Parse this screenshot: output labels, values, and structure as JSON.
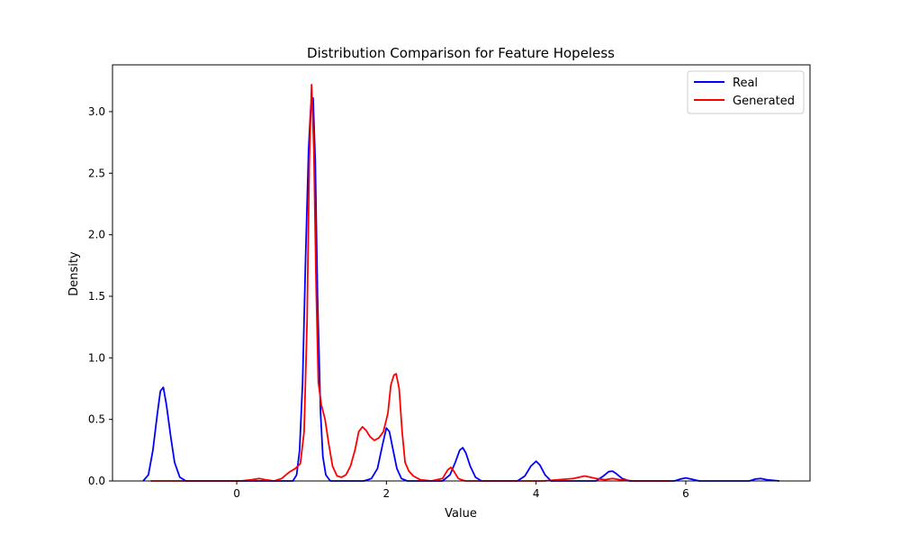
{
  "chart_data": {
    "type": "line",
    "title": "Distribution Comparison for Feature Hopeless",
    "xlabel": "Value",
    "ylabel": "Density",
    "xlim": [
      -1.66,
      7.66
    ],
    "ylim": [
      0,
      3.38
    ],
    "x_ticks": [
      0,
      2,
      4,
      6
    ],
    "y_ticks": [
      0.0,
      0.5,
      1.0,
      1.5,
      2.0,
      2.5,
      3.0
    ],
    "x_tick_labels": [
      "0",
      "2",
      "4",
      "6"
    ],
    "y_tick_labels": [
      "0.0",
      "0.5",
      "1.0",
      "1.5",
      "2.0",
      "2.5",
      "3.0"
    ],
    "grid": false,
    "legend_position": "top-right",
    "series": [
      {
        "name": "Real",
        "color": "#0000ff",
        "points": [
          [
            -1.25,
            0.0
          ],
          [
            -1.18,
            0.05
          ],
          [
            -1.12,
            0.25
          ],
          [
            -1.06,
            0.55
          ],
          [
            -1.02,
            0.73
          ],
          [
            -0.98,
            0.76
          ],
          [
            -0.94,
            0.62
          ],
          [
            -0.88,
            0.35
          ],
          [
            -0.83,
            0.15
          ],
          [
            -0.76,
            0.03
          ],
          [
            -0.68,
            0.0
          ],
          [
            0.5,
            0.0
          ],
          [
            0.75,
            0.0
          ],
          [
            0.8,
            0.05
          ],
          [
            0.84,
            0.25
          ],
          [
            0.88,
            0.8
          ],
          [
            0.92,
            1.8
          ],
          [
            0.96,
            2.7
          ],
          [
            0.99,
            3.05
          ],
          [
            1.02,
            3.11
          ],
          [
            1.05,
            2.6
          ],
          [
            1.08,
            1.5
          ],
          [
            1.12,
            0.55
          ],
          [
            1.15,
            0.2
          ],
          [
            1.19,
            0.05
          ],
          [
            1.25,
            0.0
          ],
          [
            1.7,
            0.0
          ],
          [
            1.8,
            0.02
          ],
          [
            1.88,
            0.1
          ],
          [
            1.95,
            0.3
          ],
          [
            2.0,
            0.43
          ],
          [
            2.04,
            0.4
          ],
          [
            2.09,
            0.25
          ],
          [
            2.14,
            0.1
          ],
          [
            2.2,
            0.02
          ],
          [
            2.28,
            0.0
          ],
          [
            2.75,
            0.0
          ],
          [
            2.85,
            0.05
          ],
          [
            2.92,
            0.15
          ],
          [
            2.98,
            0.25
          ],
          [
            3.02,
            0.27
          ],
          [
            3.06,
            0.23
          ],
          [
            3.12,
            0.12
          ],
          [
            3.19,
            0.03
          ],
          [
            3.27,
            0.0
          ],
          [
            3.75,
            0.0
          ],
          [
            3.85,
            0.04
          ],
          [
            3.93,
            0.12
          ],
          [
            4.0,
            0.16
          ],
          [
            4.05,
            0.13
          ],
          [
            4.12,
            0.05
          ],
          [
            4.2,
            0.0
          ],
          [
            4.8,
            0.0
          ],
          [
            4.9,
            0.04
          ],
          [
            4.97,
            0.075
          ],
          [
            5.02,
            0.08
          ],
          [
            5.07,
            0.06
          ],
          [
            5.15,
            0.02
          ],
          [
            5.25,
            0.0
          ],
          [
            5.85,
            0.0
          ],
          [
            5.93,
            0.015
          ],
          [
            6.0,
            0.025
          ],
          [
            6.07,
            0.015
          ],
          [
            6.18,
            0.0
          ],
          [
            6.85,
            0.0
          ],
          [
            6.93,
            0.015
          ],
          [
            7.0,
            0.02
          ],
          [
            7.08,
            0.01
          ],
          [
            7.25,
            0.0
          ]
        ]
      },
      {
        "name": "Generated",
        "color": "#ff0000",
        "points": [
          [
            -1.15,
            0.0
          ],
          [
            0.05,
            0.0
          ],
          [
            0.2,
            0.01
          ],
          [
            0.3,
            0.02
          ],
          [
            0.38,
            0.01
          ],
          [
            0.5,
            0.0
          ],
          [
            0.6,
            0.02
          ],
          [
            0.7,
            0.07
          ],
          [
            0.78,
            0.1
          ],
          [
            0.85,
            0.14
          ],
          [
            0.9,
            0.4
          ],
          [
            0.94,
            1.3
          ],
          [
            0.97,
            2.6
          ],
          [
            1.0,
            3.22
          ],
          [
            1.03,
            2.7
          ],
          [
            1.06,
            1.6
          ],
          [
            1.09,
            0.8
          ],
          [
            1.13,
            0.62
          ],
          [
            1.18,
            0.5
          ],
          [
            1.23,
            0.3
          ],
          [
            1.28,
            0.12
          ],
          [
            1.34,
            0.04
          ],
          [
            1.4,
            0.03
          ],
          [
            1.46,
            0.05
          ],
          [
            1.52,
            0.12
          ],
          [
            1.58,
            0.25
          ],
          [
            1.63,
            0.4
          ],
          [
            1.68,
            0.44
          ],
          [
            1.73,
            0.41
          ],
          [
            1.78,
            0.36
          ],
          [
            1.84,
            0.33
          ],
          [
            1.9,
            0.35
          ],
          [
            1.96,
            0.4
          ],
          [
            2.02,
            0.55
          ],
          [
            2.06,
            0.78
          ],
          [
            2.1,
            0.86
          ],
          [
            2.13,
            0.87
          ],
          [
            2.17,
            0.75
          ],
          [
            2.21,
            0.4
          ],
          [
            2.25,
            0.15
          ],
          [
            2.3,
            0.08
          ],
          [
            2.36,
            0.04
          ],
          [
            2.45,
            0.01
          ],
          [
            2.6,
            0.0
          ],
          [
            2.75,
            0.02
          ],
          [
            2.82,
            0.09
          ],
          [
            2.86,
            0.11
          ],
          [
            2.9,
            0.08
          ],
          [
            2.96,
            0.02
          ],
          [
            3.05,
            0.0
          ],
          [
            4.1,
            0.0
          ],
          [
            4.3,
            0.01
          ],
          [
            4.5,
            0.02
          ],
          [
            4.65,
            0.04
          ],
          [
            4.8,
            0.02
          ],
          [
            4.92,
            0.01
          ],
          [
            5.02,
            0.02
          ],
          [
            5.12,
            0.01
          ],
          [
            5.3,
            0.0
          ],
          [
            5.8,
            0.0
          ]
        ]
      }
    ]
  }
}
